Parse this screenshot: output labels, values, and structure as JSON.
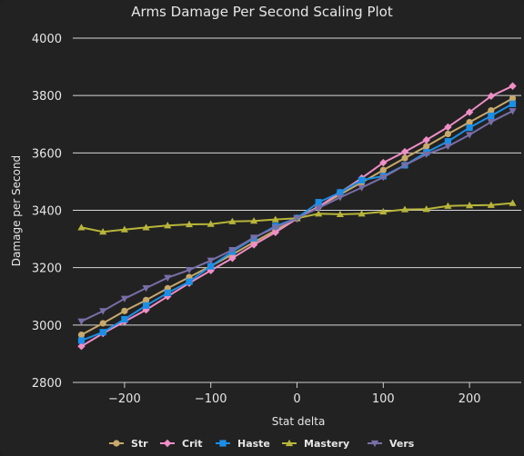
{
  "chart_data": {
    "type": "line",
    "title": "Arms Damage Per Second Scaling Plot",
    "xlabel": "Stat delta",
    "ylabel": "Damage per Second",
    "xlim": [
      -260,
      260
    ],
    "ylim": [
      2800,
      4000
    ],
    "x_ticks": [
      -200,
      -100,
      0,
      100,
      200
    ],
    "y_ticks": [
      2800,
      3000,
      3200,
      3400,
      3600,
      3800,
      4000
    ],
    "grid": "horizontal",
    "legend_position": "bottom",
    "x": [
      -250,
      -225,
      -200,
      -175,
      -150,
      -125,
      -100,
      -75,
      -50,
      -25,
      0,
      25,
      50,
      75,
      100,
      125,
      150,
      175,
      200,
      225,
      250
    ],
    "series": [
      {
        "name": "Str",
        "color": "#c8a96c",
        "marker": "circle",
        "values": [
          2966,
          3006,
          3049,
          3087,
          3128,
          3167,
          3206,
          3246,
          3289,
          3330,
          3373,
          3413,
          3455,
          3497,
          3540,
          3582,
          3623,
          3666,
          3707,
          3748,
          3790
        ]
      },
      {
        "name": "Crit",
        "color": "#f08ec6",
        "marker": "diamond",
        "values": [
          2926,
          2971,
          3012,
          3053,
          3100,
          3146,
          3190,
          3233,
          3280,
          3323,
          3371,
          3412,
          3462,
          3512,
          3566,
          3604,
          3645,
          3690,
          3742,
          3798,
          3833
        ]
      },
      {
        "name": "Haste",
        "color": "#1a8fe8",
        "marker": "square",
        "values": [
          2946,
          2975,
          3020,
          3068,
          3112,
          3151,
          3205,
          3256,
          3303,
          3345,
          3373,
          3428,
          3462,
          3505,
          3519,
          3557,
          3602,
          3640,
          3688,
          3729,
          3771
        ]
      },
      {
        "name": "Mastery",
        "color": "#b8b53a",
        "marker": "triangle",
        "values": [
          3340,
          3325,
          3333,
          3340,
          3347,
          3351,
          3352,
          3361,
          3363,
          3368,
          3372,
          3388,
          3386,
          3388,
          3395,
          3403,
          3404,
          3415,
          3417,
          3418,
          3425
        ]
      },
      {
        "name": "Vers",
        "color": "#7a6ea8",
        "marker": "triangle-down",
        "values": [
          3013,
          3049,
          3092,
          3129,
          3165,
          3192,
          3225,
          3262,
          3305,
          3340,
          3372,
          3408,
          3445,
          3479,
          3515,
          3557,
          3595,
          3623,
          3663,
          3708,
          3746
        ]
      }
    ]
  }
}
